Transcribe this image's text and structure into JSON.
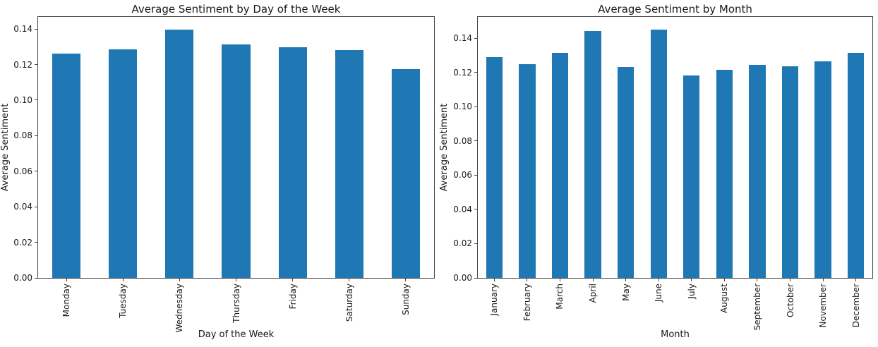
{
  "figure": {
    "background": "#ffffff",
    "bar_color": "#1f77b4",
    "spine_color": "#444444",
    "text_color": "#1a1a1a"
  },
  "chart_data": [
    {
      "type": "bar",
      "title": "Average Sentiment by Day of the Week",
      "xlabel": "Day of the Week",
      "ylabel": "Average Sentiment",
      "categories": [
        "Monday",
        "Tuesday",
        "Wednesday",
        "Thursday",
        "Friday",
        "Saturday",
        "Sunday"
      ],
      "values": [
        0.126,
        0.1284,
        0.1398,
        0.1315,
        0.1298,
        0.1281,
        0.1174
      ],
      "yticks": [
        0.0,
        0.02,
        0.04,
        0.06,
        0.08,
        0.1,
        0.12,
        0.14
      ],
      "ylim": [
        0,
        0.1468
      ],
      "bar_rel_width": 0.5,
      "bar_color": "#1f77b4",
      "grid": false,
      "legend": "none",
      "x_tick_rotation": 90
    },
    {
      "type": "bar",
      "title": "Average Sentiment by Month",
      "xlabel": "Month",
      "ylabel": "Average Sentiment",
      "categories": [
        "January",
        "February",
        "March",
        "April",
        "May",
        "June",
        "July",
        "August",
        "September",
        "October",
        "November",
        "December"
      ],
      "values": [
        0.129,
        0.1249,
        0.1313,
        0.1444,
        0.1233,
        0.1451,
        0.1182,
        0.1215,
        0.1246,
        0.1238,
        0.1265,
        0.1316
      ],
      "yticks": [
        0.0,
        0.02,
        0.04,
        0.06,
        0.08,
        0.1,
        0.12,
        0.14
      ],
      "ylim": [
        0,
        0.1525
      ],
      "bar_rel_width": 0.5,
      "bar_color": "#1f77b4",
      "grid": false,
      "legend": "none",
      "x_tick_rotation": 90
    }
  ]
}
